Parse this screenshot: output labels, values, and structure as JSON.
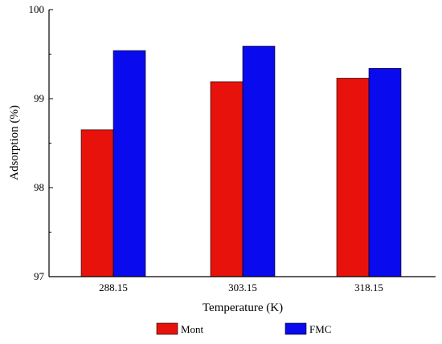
{
  "chart_data": {
    "type": "bar",
    "title": "",
    "xlabel": "Temperature (K)",
    "ylabel": "Adsorption (%)",
    "categories": [
      "288.15",
      "303.15",
      "318.15"
    ],
    "ylim": [
      97,
      100
    ],
    "yticks": [
      "97",
      "98",
      "99",
      "100"
    ],
    "grid": false,
    "legend_position": "bottom",
    "series": [
      {
        "name": "Mont",
        "color": "#e8120c",
        "values": [
          98.65,
          99.19,
          99.23
        ]
      },
      {
        "name": "FMC",
        "color": "#0a0aee",
        "values": [
          99.54,
          99.59,
          99.34
        ]
      }
    ]
  }
}
